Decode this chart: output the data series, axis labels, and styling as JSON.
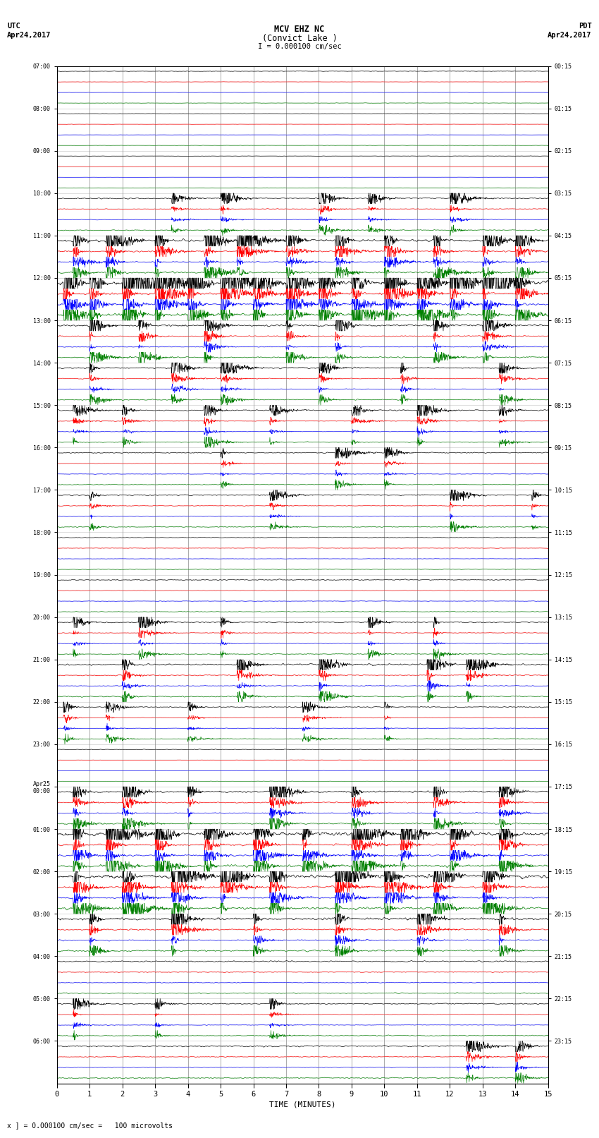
{
  "title_line1": "MCV EHZ NC",
  "title_line2": "(Convict Lake )",
  "title_line3": "I = 0.000100 cm/sec",
  "left_header_line1": "UTC",
  "left_header_line2": "Apr24,2017",
  "right_header_line1": "PDT",
  "right_header_line2": "Apr24,2017",
  "xlabel": "TIME (MINUTES)",
  "footer": "x ] = 0.000100 cm/sec =   100 microvolts",
  "utc_times": [
    "07:00",
    "08:00",
    "09:00",
    "10:00",
    "11:00",
    "12:00",
    "13:00",
    "14:00",
    "15:00",
    "16:00",
    "17:00",
    "18:00",
    "19:00",
    "20:00",
    "21:00",
    "22:00",
    "23:00",
    "Apr25\n00:00",
    "01:00",
    "02:00",
    "03:00",
    "04:00",
    "05:00",
    "06:00"
  ],
  "pdt_times": [
    "00:15",
    "01:15",
    "02:15",
    "03:15",
    "04:15",
    "05:15",
    "06:15",
    "07:15",
    "08:15",
    "09:15",
    "10:15",
    "11:15",
    "12:15",
    "13:15",
    "14:15",
    "15:15",
    "16:15",
    "17:15",
    "18:15",
    "19:15",
    "20:15",
    "21:15",
    "22:15",
    "23:15"
  ],
  "n_rows": 24,
  "traces_per_row": 4,
  "colors": [
    "black",
    "red",
    "blue",
    "green"
  ],
  "bg_color": "white",
  "grid_color": "#888888",
  "fig_width": 8.5,
  "fig_height": 16.13,
  "minutes": 15,
  "x_ticks": [
    0,
    1,
    2,
    3,
    4,
    5,
    6,
    7,
    8,
    9,
    10,
    11,
    12,
    13,
    14,
    15
  ],
  "amp_base": 0.04,
  "amp_row_scales": [
    0.5,
    0.4,
    0.3,
    1.2,
    2.5,
    4.0,
    2.0,
    1.5,
    1.2,
    1.0,
    1.2,
    0.8,
    1.0,
    1.2,
    1.8,
    1.0,
    0.6,
    2.0,
    3.5,
    3.5,
    2.5,
    1.5,
    1.2,
    1.5
  ],
  "amp_trace_scales": [
    1.0,
    0.6,
    0.5,
    0.7
  ]
}
